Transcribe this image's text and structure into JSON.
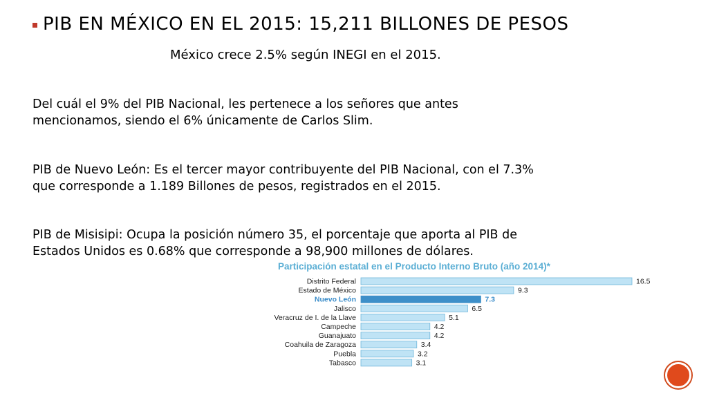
{
  "slide": {
    "title": "PIB EN MÉXICO EN EL 2015: 15,211 BILLONES DE PESOS",
    "subtitle": "México crece 2.5% según INEGI en el 2015.",
    "paragraphs": [
      [
        "Del cuál el 9% del PIB Nacional, les pertenece a los señores que antes",
        "mencionamos, siendo el 6% únicamente de Carlos Slim."
      ],
      [
        "PIB de Nuevo León: Es el tercer mayor contribuyente del PIB Nacional, con el 7.3%",
        "que corresponde a 1.189 Billones de pesos, registrados en el 2015."
      ],
      [
        "PIB de Misisipi: Ocupa la posición número 35, el porcentaje que aporta al PIB de",
        "Estados Unidos es 0.68% que corresponde a 98,900 millones de dólares."
      ]
    ],
    "accent_color": "#c0392b"
  },
  "chart_data": {
    "type": "bar",
    "orientation": "horizontal",
    "title": "Participación estatal en el Producto Interno Bruto (año 2014)*",
    "categories": [
      "Distrito Federal",
      "Estado de México",
      "Nuevo León",
      "Jalisco",
      "Veracruz de I. de la Llave",
      "Campeche",
      "Guanajuato",
      "Coahuila de Zaragoza",
      "Puebla",
      "Tabasco"
    ],
    "values": [
      16.5,
      9.3,
      7.3,
      6.5,
      5.1,
      4.2,
      4.2,
      3.4,
      3.2,
      3.1
    ],
    "value_labels": [
      "16.5",
      "9.3",
      "7.3",
      "6.5",
      "5.1",
      "4.2",
      "4.2",
      "3.4",
      "3.2",
      "3.1"
    ],
    "highlight": "Nuevo León",
    "colors": {
      "title": "#5aaed4",
      "bar": "#bfe3f5",
      "bar_border": "#6fb6da",
      "highlight_bar": "#3d8fc9",
      "highlight_label": "#3a8cc9",
      "label": "#222222"
    },
    "xlim": [
      0,
      16.5
    ],
    "grid": false,
    "legend": "none"
  }
}
